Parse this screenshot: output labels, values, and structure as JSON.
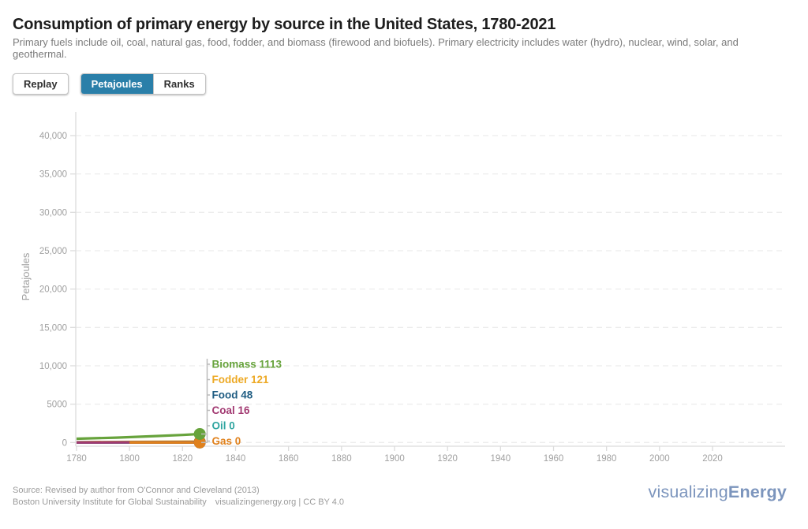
{
  "header": {
    "title": "Consumption of primary energy by source in the United States, 1780-2021",
    "subtitle": "Primary fuels include oil, coal, natural gas, food, fodder, and biomass (firewood and biofuels). Primary electricity includes water (hydro), nuclear, wind, solar, and geothermal."
  },
  "controls": {
    "replay_label": "Replay",
    "toggle": [
      {
        "label": "Petajoules",
        "active": true
      },
      {
        "label": "Ranks",
        "active": false
      }
    ],
    "active_color": "#2a7fa9"
  },
  "chart_data": {
    "type": "line",
    "title": "Consumption of primary energy by source in the United States, 1780-2021",
    "xlabel": "",
    "ylabel": "Petajoules",
    "current_year": 1826,
    "xlim": [
      1780,
      2047
    ],
    "ylim": [
      0,
      43000
    ],
    "grid": "dashed horizontal gridlines",
    "legend_position": "inline labels right of current data points",
    "x_ticks": [
      1780,
      1800,
      1820,
      1840,
      1860,
      1880,
      1900,
      1920,
      1940,
      1960,
      1980,
      2000,
      2020
    ],
    "y_ticks": [
      {
        "value": 0,
        "label": "0"
      },
      {
        "value": 5000,
        "label": "5000"
      },
      {
        "value": 10000,
        "label": "10,000"
      },
      {
        "value": 15000,
        "label": "15,000"
      },
      {
        "value": 20000,
        "label": "20,000"
      },
      {
        "value": 25000,
        "label": "25,000"
      },
      {
        "value": 30000,
        "label": "30,000"
      },
      {
        "value": 35000,
        "label": "35,000"
      },
      {
        "value": 40000,
        "label": "40,000"
      }
    ],
    "series": [
      {
        "name": "Biomass",
        "end_value": 1113,
        "label": "Biomass 1113",
        "color": "#67a33c",
        "z": 6,
        "points": [
          [
            1780,
            490
          ],
          [
            1795,
            640
          ],
          [
            1810,
            840
          ],
          [
            1820,
            990
          ],
          [
            1826.5,
            1113
          ]
        ]
      },
      {
        "name": "Fodder",
        "end_value": 121,
        "label": "Fodder 121",
        "color": "#eda924",
        "z": 1,
        "points": [
          [
            1780,
            55
          ],
          [
            1800,
            80
          ],
          [
            1826.5,
            121
          ]
        ]
      },
      {
        "name": "Food",
        "end_value": 48,
        "label": "Food 48",
        "color": "#1f5c82",
        "z": 2,
        "points": [
          [
            1780,
            18
          ],
          [
            1800,
            30
          ],
          [
            1826.5,
            48
          ]
        ]
      },
      {
        "name": "Coal",
        "end_value": 16,
        "label": "Coal 16",
        "color": "#a23a72",
        "z": 4,
        "points": [
          [
            1780,
            2
          ],
          [
            1800,
            6
          ],
          [
            1826.5,
            16
          ]
        ]
      },
      {
        "name": "Oil",
        "end_value": 0,
        "label": "Oil 0",
        "color": "#30a5a0",
        "z": 3,
        "points": [
          [
            1780,
            0
          ],
          [
            1826.5,
            0
          ]
        ]
      },
      {
        "name": "Gas",
        "end_value": 0,
        "label": "Gas 0",
        "color": "#e0811c",
        "z": 5,
        "points": [
          [
            1800,
            0
          ],
          [
            1826.5,
            0
          ]
        ]
      }
    ]
  },
  "footer": {
    "source_line1": "Source: Revised by author from O'Connor and Cleveland (2013)",
    "source_line2a": "Boston University Institute for Global Sustainability",
    "source_line2b": "visualizingenergy.org | CC BY 4.0",
    "logo_part1": "visualizing",
    "logo_part2": "Energy"
  }
}
